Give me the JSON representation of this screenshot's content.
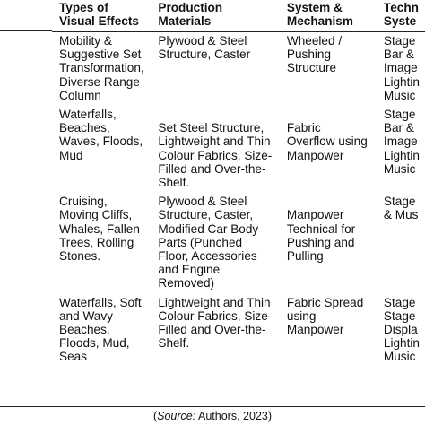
{
  "headers": [
    [
      "Types of",
      "Visual Effects"
    ],
    [
      "Production",
      "Materials"
    ],
    [
      "System &",
      "Mechanism"
    ],
    [
      "Techn",
      "Syste"
    ]
  ],
  "rows": [
    [
      [
        "Mobility &",
        "Suggestive Set",
        "Transformation,",
        "Diverse Range",
        "Column"
      ],
      [
        "Plywood & Steel",
        "Structure, Caster"
      ],
      [
        "Wheeled /",
        "Pushing",
        "Structure"
      ],
      [
        "Stage",
        "Bar &",
        "Image",
        "Lightin",
        "Music"
      ]
    ],
    [
      [
        "Waterfalls,",
        "Beaches,",
        "Waves, Floods,",
        "Mud"
      ],
      [
        "",
        "Set Steel Structure,",
        "Lightweight and Thin",
        "Colour Fabrics, Size-",
        "Filled and Over-the-",
        "Shelf."
      ],
      [
        "",
        "Fabric",
        "Overflow using",
        "Manpower"
      ],
      [
        "Stage",
        "Bar &",
        "Image",
        "Lightin",
        "Music"
      ]
    ],
    [
      [
        "Cruising,",
        "Moving Cliffs,",
        "Whales, Fallen",
        "Trees, Rolling",
        "Stones."
      ],
      [
        "Plywood & Steel",
        "Structure, Caster,",
        "Modified Car Body",
        "Parts (Punched",
        "Floor, Accessories",
        "and Engine",
        "Removed)"
      ],
      [
        "",
        "Manpower",
        "Technical for",
        "Pushing and",
        "Pulling"
      ],
      [
        "Stage",
        "& Mus"
      ]
    ],
    [
      [
        "Waterfalls, Soft",
        "and Wavy",
        "Beaches,",
        "Floods, Mud,",
        "Seas"
      ],
      [
        "Lightweight and Thin",
        "Colour Fabrics, Size-",
        "Filled and Over-the-",
        "Shelf."
      ],
      [
        "Fabric Spread",
        "using",
        "Manpower"
      ],
      [
        "Stage",
        "Stage",
        "Displa",
        "Lightin",
        "Music"
      ]
    ]
  ],
  "source": {
    "open": "(",
    "label": "Source:",
    "text": " Authors, 2023)"
  }
}
